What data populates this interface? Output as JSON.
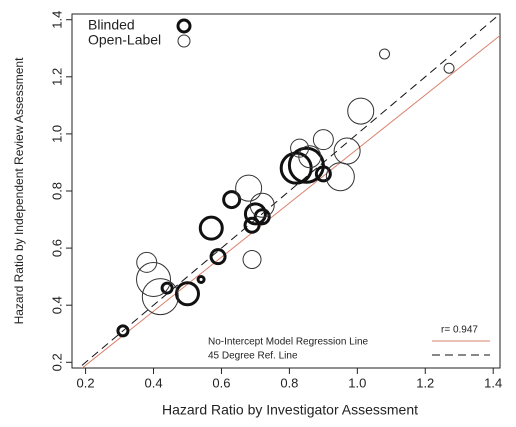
{
  "chart_data": {
    "type": "bubble",
    "xlabel": "Hazard Ratio by Investigator Assessment",
    "ylabel": "Hazard Ratio by Independent Review Assessment",
    "xlim": [
      0.16,
      1.42
    ],
    "ylim": [
      0.18,
      1.42
    ],
    "xticks": [
      0.2,
      0.4,
      0.6,
      0.8,
      {
        "value": 1.0,
        "label": "1.0"
      },
      1.2,
      1.4
    ],
    "yticks": [
      0.2,
      0.4,
      0.6,
      0.8,
      {
        "value": 1.0,
        "label": "1.0"
      },
      1.2,
      1.4
    ],
    "series": [
      {
        "name": "Blinded",
        "color": "#111111",
        "stroke_width": 3,
        "x": [
          0.31,
          0.44,
          0.5,
          0.54,
          0.59,
          0.57,
          0.63,
          0.69,
          0.7,
          0.72,
          0.82,
          0.85,
          0.9
        ],
        "y": [
          0.31,
          0.46,
          0.44,
          0.49,
          0.57,
          0.67,
          0.77,
          0.68,
          0.72,
          0.71,
          0.88,
          0.89,
          0.86
        ],
        "sizes": [
          5,
          5,
          11,
          3,
          7,
          11,
          8,
          7,
          10,
          7,
          15,
          17,
          7
        ]
      },
      {
        "name": "Open-Label",
        "color": "#333333",
        "stroke_width": 1,
        "x": [
          0.38,
          0.4,
          0.42,
          0.68,
          0.72,
          0.69,
          0.83,
          0.86,
          0.9,
          0.95,
          0.97,
          1.01,
          1.08,
          1.27
        ],
        "y": [
          0.55,
          0.49,
          0.43,
          0.81,
          0.75,
          0.56,
          0.95,
          0.92,
          0.98,
          0.85,
          0.94,
          1.08,
          1.28,
          1.23
        ],
        "sizes": [
          10,
          17,
          18,
          13,
          12,
          9,
          9,
          11,
          10,
          14,
          13,
          13,
          5,
          5
        ]
      }
    ],
    "regression": {
      "name": "No-Intercept Model Regression Line",
      "color": "#d9806b",
      "slope": {
        "value": 0.947,
        "label": "r= 0.947"
      }
    },
    "reference": {
      "name": "45 Degree Ref. Line",
      "color": "#111111",
      "slope": 1
    }
  }
}
